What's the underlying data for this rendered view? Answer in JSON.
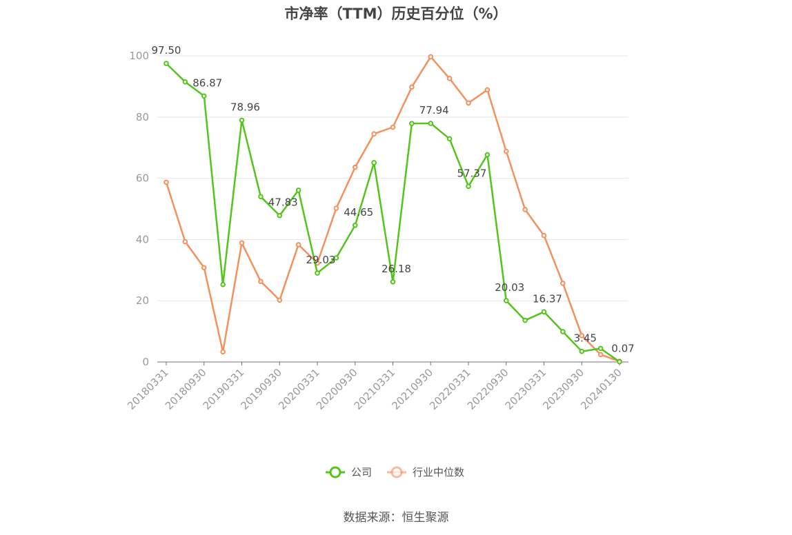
{
  "title": "市净率（TTM）历史百分位（%）",
  "source": "数据来源：恒生聚源",
  "chart_data": {
    "type": "line",
    "title": "市净率（TTM）历史百分位（%）",
    "x": [
      "20180331",
      "20180630",
      "20180930",
      "20181231",
      "20190331",
      "20190630",
      "20190930",
      "20191231",
      "20200331",
      "20200630",
      "20200930",
      "20201231",
      "20210331",
      "20210630",
      "20210930",
      "20211231",
      "20220331",
      "20220630",
      "20220930",
      "20221231",
      "20230331",
      "20230630",
      "20230930",
      "20231231",
      "20240130"
    ],
    "x_tick_labels": [
      "20180331",
      "20180930",
      "20190331",
      "20190930",
      "20200331",
      "20200930",
      "20210331",
      "20210930",
      "20220331",
      "20220930",
      "20230331",
      "20230930",
      "20240130"
    ],
    "ylim": [
      0,
      100
    ],
    "y_ticks": [
      0,
      20,
      40,
      60,
      80,
      100
    ],
    "grid": true,
    "legend_position": "bottom",
    "series": [
      {
        "name": "公司",
        "color": "#52c41a",
        "values": [
          97.5,
          91.5,
          86.87,
          25.3,
          78.96,
          54.0,
          47.83,
          56.1,
          29.03,
          34.0,
          44.65,
          65.1,
          26.18,
          77.9,
          77.94,
          72.9,
          57.37,
          67.7,
          20.03,
          13.6,
          16.37,
          9.9,
          3.45,
          4.4,
          0.07
        ],
        "labels": {
          "0": "97.50",
          "2": "86.87",
          "4": "78.96",
          "6": "47.83",
          "8": "29.03",
          "10": "44.65",
          "12": "26.18",
          "14": "77.94",
          "16": "57.37",
          "18": "20.03",
          "20": "16.37",
          "22": "3.45",
          "24": "0.07"
        }
      },
      {
        "name": "行业中位数",
        "color": "#f5905c",
        "values": [
          58.7,
          39.3,
          30.8,
          3.3,
          38.9,
          26.3,
          20.2,
          38.3,
          32.3,
          50.2,
          63.6,
          74.5,
          76.7,
          89.8,
          99.7,
          92.6,
          84.6,
          88.9,
          68.8,
          49.8,
          41.3,
          25.7,
          8.6,
          2.4,
          0.2
        ]
      }
    ]
  }
}
